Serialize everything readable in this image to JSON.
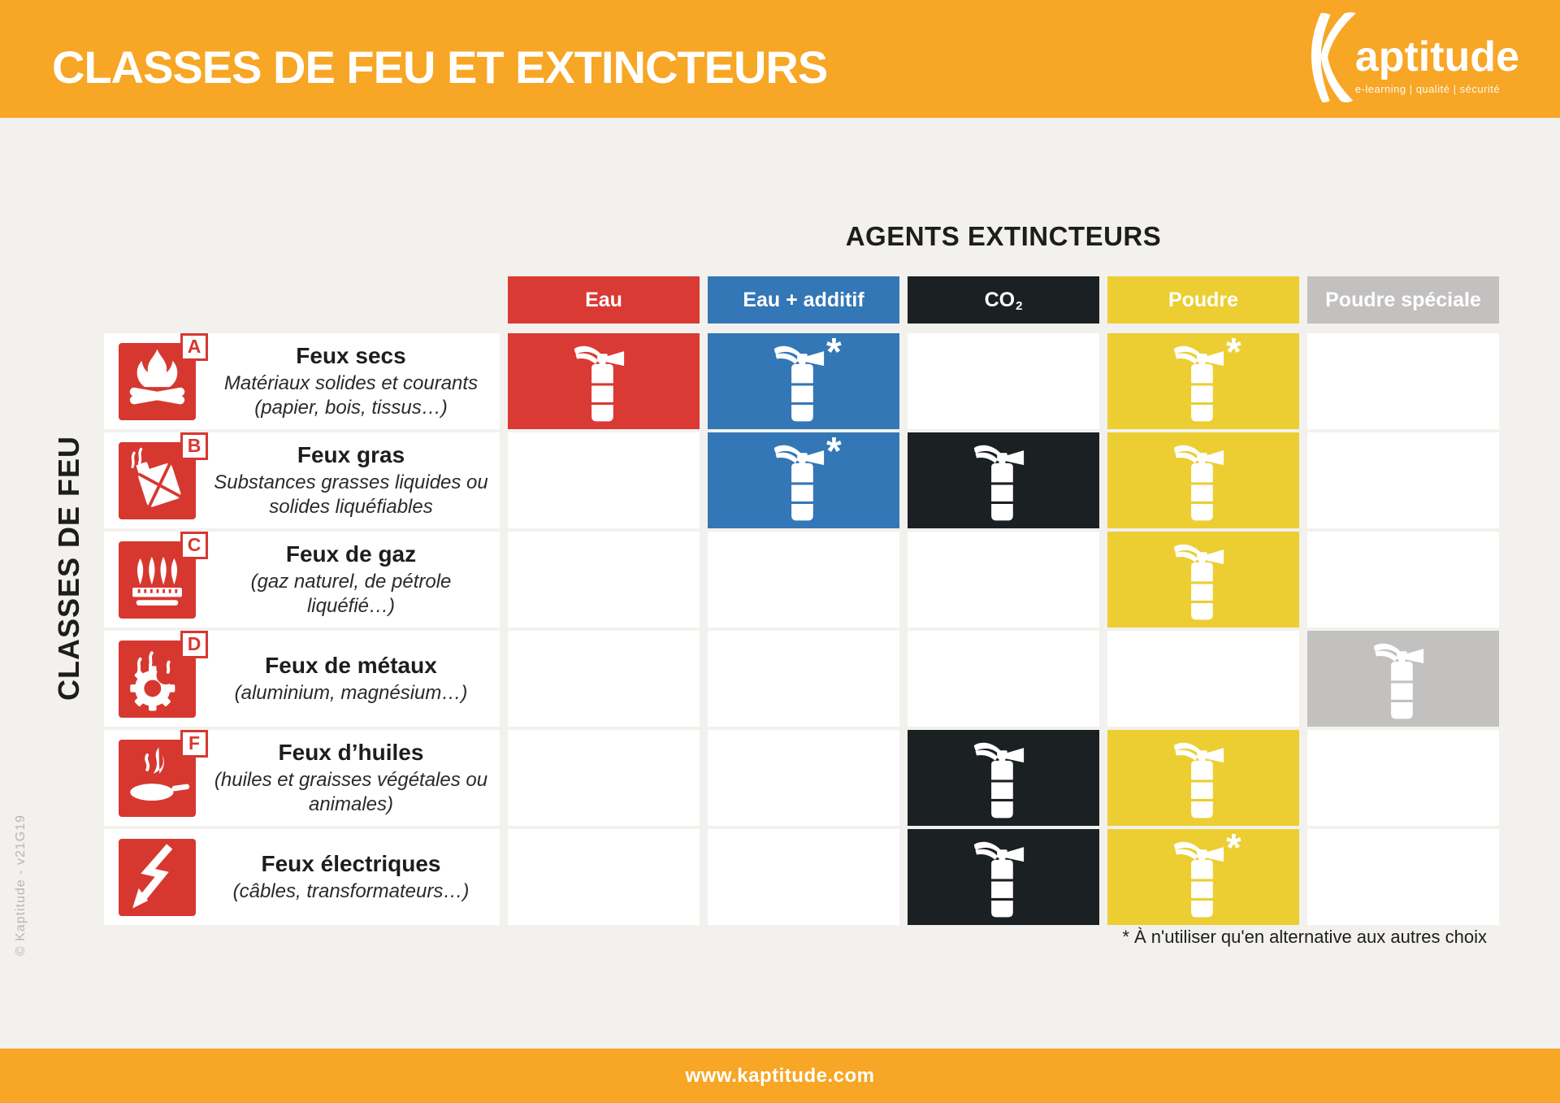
{
  "header": {
    "title": "CLASSES DE FEU ET EXTINCTEURS",
    "logo": {
      "name": "Kaptitude",
      "tagline": "e-learning | qualité | sécurité"
    }
  },
  "matrix_title": "AGENTS EXTINCTEURS",
  "side_label": "CLASSES DE FEU",
  "watermark": "© Kaptitude - v21G19",
  "footnote": "* À n'utiliser qu'en alternative aux autres choix",
  "footer": {
    "url": "www.kaptitude.com"
  },
  "colors": {
    "brand_orange": "#F7A625",
    "background": "#F2F1EE",
    "pictogram_red": "#D63830",
    "agent_eau": "#DA3A34",
    "agent_eau_additif": "#3377B6",
    "agent_co2": "#1B2023",
    "agent_poudre": "#ECCE33",
    "agent_poudre_speciale": "#C3C0C0"
  },
  "table": {
    "agents": [
      {
        "id": "eau",
        "label": "Eau",
        "color": "#DA3A34",
        "text_color": "#ffffff"
      },
      {
        "id": "eau-additif",
        "label": "Eau + additif",
        "color": "#3377B6",
        "text_color": "#ffffff"
      },
      {
        "id": "co2",
        "label": "CO",
        "subscript": "2",
        "color": "#1B2023",
        "text_color": "#ffffff"
      },
      {
        "id": "poudre",
        "label": "Poudre",
        "color": "#ECCE33",
        "text_color": "#ffffff"
      },
      {
        "id": "poudre-speciale",
        "label": "Poudre spéciale",
        "color": "#C3C0C0",
        "text_color": "#ffffff"
      }
    ],
    "rows": [
      {
        "id": "a",
        "letter": "A",
        "icon": "campfire-icon",
        "title": "Feux secs",
        "subtitle": "Matériaux solides et courants (papier, bois, tissus…)",
        "cells": [
          {
            "filled": true,
            "asterisk": false
          },
          {
            "filled": true,
            "asterisk": true
          },
          {
            "filled": false,
            "asterisk": false
          },
          {
            "filled": true,
            "asterisk": true
          },
          {
            "filled": false,
            "asterisk": false
          }
        ]
      },
      {
        "id": "b",
        "letter": "B",
        "icon": "jerrycan-icon",
        "title": "Feux gras",
        "subtitle": "Substances grasses liquides ou solides liquéfiables",
        "cells": [
          {
            "filled": false,
            "asterisk": false
          },
          {
            "filled": true,
            "asterisk": true
          },
          {
            "filled": true,
            "asterisk": false
          },
          {
            "filled": true,
            "asterisk": false
          },
          {
            "filled": false,
            "asterisk": false
          }
        ]
      },
      {
        "id": "c",
        "letter": "C",
        "icon": "gas-flames-icon",
        "title": "Feux de gaz",
        "subtitle": "(gaz naturel, de pétrole liquéfié…)",
        "cells": [
          {
            "filled": false,
            "asterisk": false
          },
          {
            "filled": false,
            "asterisk": false
          },
          {
            "filled": false,
            "asterisk": false
          },
          {
            "filled": true,
            "asterisk": false
          },
          {
            "filled": false,
            "asterisk": false
          }
        ]
      },
      {
        "id": "d",
        "letter": "D",
        "icon": "gear-flame-icon",
        "title": "Feux de métaux",
        "subtitle": "(aluminium, magnésium…)",
        "cells": [
          {
            "filled": false,
            "asterisk": false
          },
          {
            "filled": false,
            "asterisk": false
          },
          {
            "filled": false,
            "asterisk": false
          },
          {
            "filled": false,
            "asterisk": false
          },
          {
            "filled": true,
            "asterisk": false
          }
        ]
      },
      {
        "id": "f",
        "letter": "F",
        "icon": "pan-icon",
        "title": "Feux d’huiles",
        "subtitle": "(huiles et graisses végétales ou animales)",
        "cells": [
          {
            "filled": false,
            "asterisk": false
          },
          {
            "filled": false,
            "asterisk": false
          },
          {
            "filled": true,
            "asterisk": false
          },
          {
            "filled": true,
            "asterisk": false
          },
          {
            "filled": false,
            "asterisk": false
          }
        ]
      },
      {
        "id": "electrique",
        "letter": null,
        "icon": "lightning-icon",
        "title": "Feux électriques",
        "subtitle": "(câbles, transformateurs…)",
        "cells": [
          {
            "filled": false,
            "asterisk": false
          },
          {
            "filled": false,
            "asterisk": false
          },
          {
            "filled": true,
            "asterisk": false
          },
          {
            "filled": true,
            "asterisk": true
          },
          {
            "filled": false,
            "asterisk": false
          }
        ]
      }
    ]
  }
}
